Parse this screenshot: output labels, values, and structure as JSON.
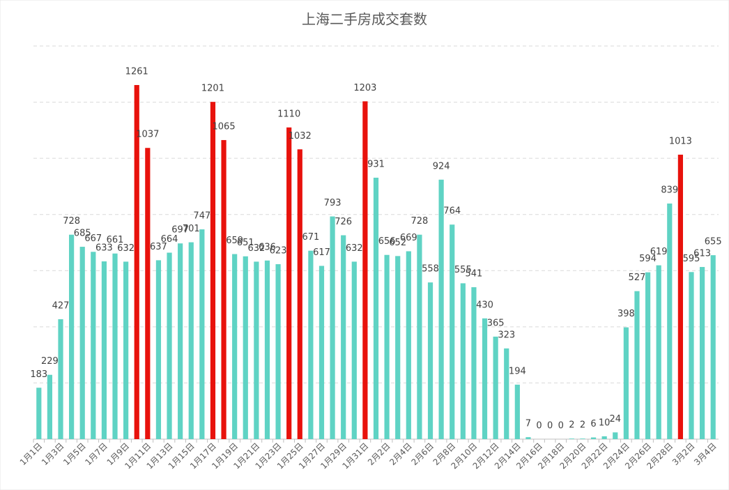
{
  "chart_data": {
    "type": "bar",
    "title": "上海二手房成交套数",
    "categories": [
      "1月1日",
      null,
      "1月3日",
      null,
      "1月5日",
      null,
      "1月7日",
      null,
      "1月9日",
      null,
      "1月11日",
      null,
      "1月13日",
      null,
      "1月15日",
      null,
      "1月17日",
      null,
      "1月19日",
      null,
      "1月21日",
      null,
      "1月23日",
      null,
      "1月25日",
      null,
      "1月27日",
      null,
      "1月29日",
      null,
      "1月31日",
      null,
      "2月2日",
      null,
      "2月4日",
      null,
      "2月6日",
      null,
      "2月8日",
      null,
      "2月10日",
      null,
      "2月12日",
      null,
      "2月14日",
      null,
      "2月16日",
      null,
      "2月18日",
      null,
      "2月20日",
      null,
      "2月22日",
      null,
      "2月24日",
      null,
      "2月26日",
      null,
      "2月28日",
      null,
      "3月2日",
      null,
      "3月4日"
    ],
    "values": [
      183,
      229,
      427,
      728,
      685,
      667,
      633,
      661,
      632,
      1261,
      1037,
      637,
      664,
      697,
      701,
      747,
      1201,
      1065,
      659,
      651,
      632,
      636,
      623,
      1110,
      1032,
      671,
      617,
      793,
      726,
      632,
      1203,
      931,
      656,
      652,
      669,
      728,
      558,
      924,
      764,
      555,
      541,
      430,
      365,
      323,
      194,
      7,
      0,
      0,
      0,
      2,
      2,
      6,
      10,
      24,
      398,
      527,
      594,
      619,
      839,
      1013,
      595,
      613,
      655
    ],
    "colors": [
      "#5fd3c4",
      "#5fd3c4",
      "#5fd3c4",
      "#5fd3c4",
      "#5fd3c4",
      "#5fd3c4",
      "#5fd3c4",
      "#5fd3c4",
      "#5fd3c4",
      "#e8120c",
      "#e8120c",
      "#5fd3c4",
      "#5fd3c4",
      "#5fd3c4",
      "#5fd3c4",
      "#5fd3c4",
      "#e8120c",
      "#e8120c",
      "#5fd3c4",
      "#5fd3c4",
      "#5fd3c4",
      "#5fd3c4",
      "#5fd3c4",
      "#e8120c",
      "#e8120c",
      "#5fd3c4",
      "#5fd3c4",
      "#5fd3c4",
      "#5fd3c4",
      "#5fd3c4",
      "#e8120c",
      "#5fd3c4",
      "#5fd3c4",
      "#5fd3c4",
      "#5fd3c4",
      "#5fd3c4",
      "#5fd3c4",
      "#5fd3c4",
      "#5fd3c4",
      "#5fd3c4",
      "#5fd3c4",
      "#5fd3c4",
      "#5fd3c4",
      "#5fd3c4",
      "#5fd3c4",
      "#5fd3c4",
      "#5fd3c4",
      "#5fd3c4",
      "#5fd3c4",
      "#5fd3c4",
      "#5fd3c4",
      "#5fd3c4",
      "#5fd3c4",
      "#5fd3c4",
      "#5fd3c4",
      "#5fd3c4",
      "#5fd3c4",
      "#5fd3c4",
      "#5fd3c4",
      "#e8120c",
      "#5fd3c4",
      "#5fd3c4",
      "#5fd3c4"
    ],
    "ylim": [
      0,
      1400
    ],
    "yticks": [
      0,
      200,
      400,
      600,
      800,
      1000,
      1200,
      1400
    ],
    "grid": true
  }
}
